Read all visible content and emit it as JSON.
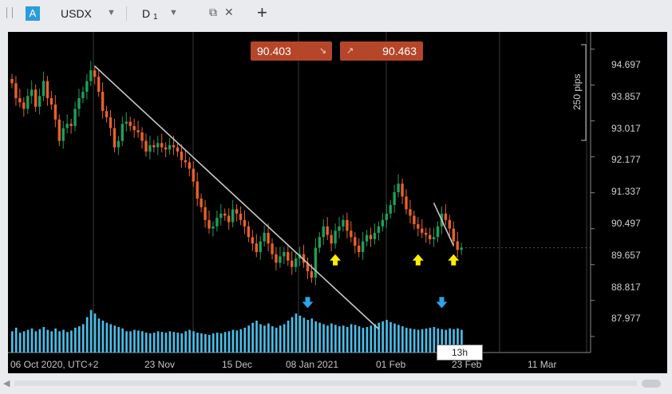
{
  "tab": {
    "badge": "A",
    "symbol": "USDX",
    "timeframe": "D",
    "timeframe_sub": "1"
  },
  "prices": {
    "sell": "90.403",
    "buy": "90.463"
  },
  "ruler": {
    "label": "250 pips"
  },
  "countdown": "13h",
  "y_axis": {
    "ticks": [
      "94.697",
      "93.857",
      "93.017",
      "92.177",
      "91.337",
      "90.497",
      "89.657",
      "88.817",
      "87.977"
    ]
  },
  "x_axis": {
    "labels": [
      "06 Oct 2020, UTC+2",
      "23 Nov",
      "15 Dec",
      "08 Jan 2021",
      "01 Feb",
      "23 Feb",
      "11 Mar"
    ]
  },
  "colors": {
    "up": "#1f9e5a",
    "down": "#e8612a",
    "volume": "#48c1ec",
    "annotation_yellow": "#ffee00",
    "annotation_blue": "#2fa3e8",
    "trendline": "#c8c8c8"
  },
  "icons": [
    "grip-icon",
    "dropdown-arrow-icon",
    "popout-icon",
    "close-icon",
    "plus-icon",
    "down-right-arrow-icon",
    "up-right-arrow-icon",
    "up-arrow-icon",
    "down-arrow-icon"
  ],
  "chart_data": {
    "type": "candlestick",
    "y_range": [
      87.6,
      95.1
    ],
    "closes": [
      93.9,
      93.55,
      93.45,
      93.3,
      93.6,
      93.75,
      93.35,
      93.6,
      93.95,
      93.55,
      93.4,
      93.05,
      92.55,
      92.85,
      92.95,
      92.9,
      93.3,
      93.55,
      93.7,
      93.95,
      94.2,
      94.05,
      93.7,
      93.25,
      93.1,
      92.85,
      92.4,
      92.55,
      92.95,
      93.0,
      92.9,
      92.8,
      92.75,
      92.55,
      92.3,
      92.45,
      92.4,
      92.5,
      92.4,
      92.35,
      92.45,
      92.4,
      92.3,
      92.1,
      92.05,
      91.9,
      91.6,
      91.2,
      91.0,
      90.7,
      90.5,
      90.55,
      90.75,
      90.85,
      90.8,
      90.65,
      90.95,
      90.85,
      90.7,
      90.55,
      90.3,
      90.15,
      89.95,
      90.2,
      90.4,
      90.15,
      89.9,
      89.7,
      89.85,
      89.95,
      89.75,
      89.6,
      89.8,
      89.9,
      89.7,
      89.5,
      89.35,
      90.05,
      90.3,
      90.55,
      90.35,
      90.15,
      90.45,
      90.55,
      90.7,
      90.45,
      90.3,
      90.1,
      89.95,
      90.2,
      90.35,
      90.25,
      90.4,
      90.55,
      90.7,
      90.85,
      91.05,
      91.35,
      91.55,
      91.25,
      90.95,
      90.8,
      90.6,
      90.5,
      90.4,
      90.35,
      90.25,
      90.3,
      90.55,
      90.85,
      90.7,
      90.5,
      90.2,
      90.0,
      90.05
    ],
    "volume": [
      30,
      35,
      28,
      30,
      32,
      34,
      30,
      33,
      36,
      32,
      30,
      34,
      30,
      32,
      29,
      31,
      35,
      37,
      40,
      50,
      60,
      55,
      48,
      45,
      42,
      40,
      38,
      36,
      34,
      30,
      30,
      32,
      31,
      30,
      28,
      27,
      28,
      30,
      29,
      28,
      30,
      29,
      28,
      27,
      30,
      32,
      30,
      28,
      27,
      26,
      25,
      27,
      28,
      27,
      29,
      30,
      32,
      31,
      33,
      35,
      38,
      42,
      45,
      40,
      38,
      41,
      37,
      35,
      38,
      40,
      45,
      50,
      55,
      52,
      49,
      46,
      48,
      44,
      42,
      40,
      38,
      41,
      39,
      37,
      38,
      36,
      40,
      39,
      37,
      35,
      36,
      38,
      40,
      42,
      44,
      46,
      43,
      41,
      39,
      37,
      35,
      34,
      33,
      32,
      33,
      34,
      35,
      36,
      34,
      33,
      32,
      34,
      33,
      34,
      32
    ],
    "annotations": [
      {
        "type": "up-arrow",
        "color": "yellow",
        "bar": 82
      },
      {
        "type": "up-arrow",
        "color": "yellow",
        "bar": 103
      },
      {
        "type": "up-arrow",
        "color": "yellow",
        "bar": 112
      },
      {
        "type": "down-arrow",
        "color": "blue",
        "bar": 75
      },
      {
        "type": "down-arrow",
        "color": "blue",
        "bar": 109
      }
    ],
    "trendlines": [
      {
        "from": {
          "bar": 21,
          "price": 94.3
        },
        "to": {
          "bar": 93,
          "price": 88.15
        }
      },
      {
        "from": {
          "bar": 107,
          "price": 91.1
        },
        "to": {
          "bar": 112,
          "price": 90.1
        }
      }
    ]
  }
}
